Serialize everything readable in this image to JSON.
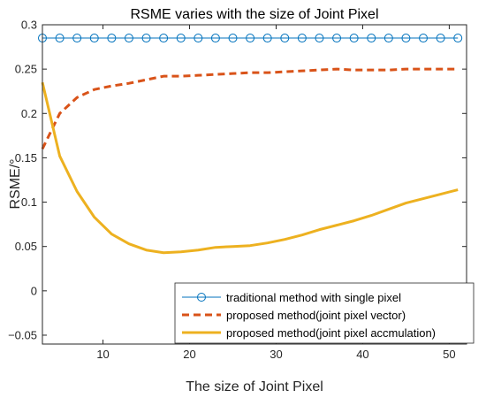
{
  "chart_data": {
    "type": "line",
    "title": "RSME varies with the size of Joint Pixel",
    "xlabel": "The size of Joint Pixel",
    "ylabel": "RSME/°",
    "xlim": [
      3,
      52
    ],
    "ylim": [
      -0.06,
      0.3
    ],
    "xticks": [
      10,
      20,
      30,
      40,
      50
    ],
    "yticks": [
      -0.05,
      0,
      0.05,
      0.1,
      0.15,
      0.2,
      0.25,
      0.3
    ],
    "xtick_labels": [
      "10",
      "20",
      "30",
      "40",
      "50"
    ],
    "ytick_labels": [
      "−0.05",
      "0",
      "0.05",
      "0.1",
      "0.15",
      "0.2",
      "0.25",
      "0.3"
    ],
    "grid": false,
    "legend_position": "bottom-right",
    "x": [
      3,
      5,
      7,
      9,
      11,
      13,
      15,
      17,
      19,
      21,
      23,
      25,
      27,
      29,
      31,
      33,
      35,
      37,
      39,
      41,
      43,
      45,
      47,
      49,
      51
    ],
    "series": [
      {
        "name": "traditional method with single pixel",
        "color": "#0072BD",
        "style": "solid-circle-markers",
        "values": [
          0.285,
          0.285,
          0.285,
          0.285,
          0.285,
          0.285,
          0.285,
          0.285,
          0.285,
          0.285,
          0.285,
          0.285,
          0.285,
          0.285,
          0.285,
          0.285,
          0.285,
          0.285,
          0.285,
          0.285,
          0.285,
          0.285,
          0.285,
          0.285,
          0.285
        ]
      },
      {
        "name": "proposed method(joint pixel vector)",
        "color": "#D95319",
        "style": "dashed",
        "values": [
          0.16,
          0.2,
          0.218,
          0.227,
          0.231,
          0.234,
          0.238,
          0.242,
          0.242,
          0.243,
          0.244,
          0.245,
          0.246,
          0.246,
          0.247,
          0.248,
          0.249,
          0.25,
          0.249,
          0.249,
          0.249,
          0.25,
          0.25,
          0.25,
          0.25
        ]
      },
      {
        "name": "proposed method(joint pixel accmulation)",
        "color": "#EDB120",
        "style": "solid-thick",
        "values": [
          0.235,
          0.152,
          0.112,
          0.083,
          0.064,
          0.053,
          0.046,
          0.043,
          0.044,
          0.046,
          0.049,
          0.05,
          0.051,
          0.054,
          0.058,
          0.063,
          0.069,
          0.074,
          0.079,
          0.085,
          0.092,
          0.099,
          0.104,
          0.109,
          0.114
        ]
      }
    ]
  }
}
